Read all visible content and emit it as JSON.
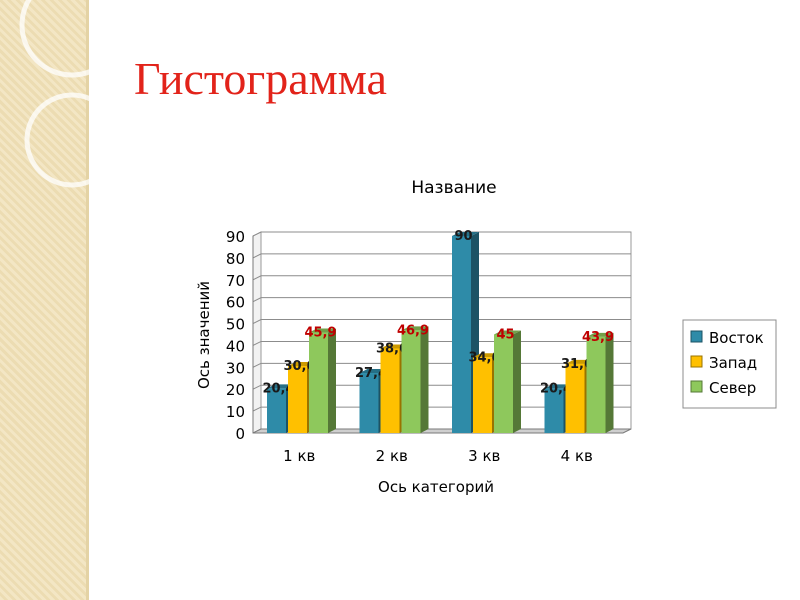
{
  "slide": {
    "title": "Гистограмма"
  },
  "chart_data": {
    "type": "bar",
    "title": "Название",
    "xlabel": "Ось категорий",
    "ylabel": "Ось значений",
    "categories": [
      "1 кв",
      "2 кв",
      "3 кв",
      "4 кв"
    ],
    "series": [
      {
        "name": "Восток",
        "color": "#2e8ba8",
        "values": [
          20.4,
          27.4,
          90,
          20.4
        ],
        "labels": [
          "20,4",
          "27,4",
          "90",
          "20,4"
        ]
      },
      {
        "name": "Запад",
        "color": "#ffc000",
        "values": [
          30.6,
          38.6,
          34.6,
          31.6
        ],
        "labels": [
          "30,6",
          "38,6",
          "34,6",
          "31,6"
        ]
      },
      {
        "name": "Север",
        "color": "#8ec85c",
        "values": [
          45.9,
          46.9,
          45,
          43.9
        ],
        "labels": [
          "45,9",
          "46,9",
          "45",
          "43,9"
        ]
      }
    ],
    "ylim": [
      0,
      90
    ],
    "yticks": [
      0,
      10,
      20,
      30,
      40,
      50,
      60,
      70,
      80,
      90
    ],
    "label_colors": {
      "Восток": "#1a1a1a",
      "Запад": "#1a1a1a",
      "Север": "#c00000"
    },
    "grid": true,
    "legend": "right"
  }
}
